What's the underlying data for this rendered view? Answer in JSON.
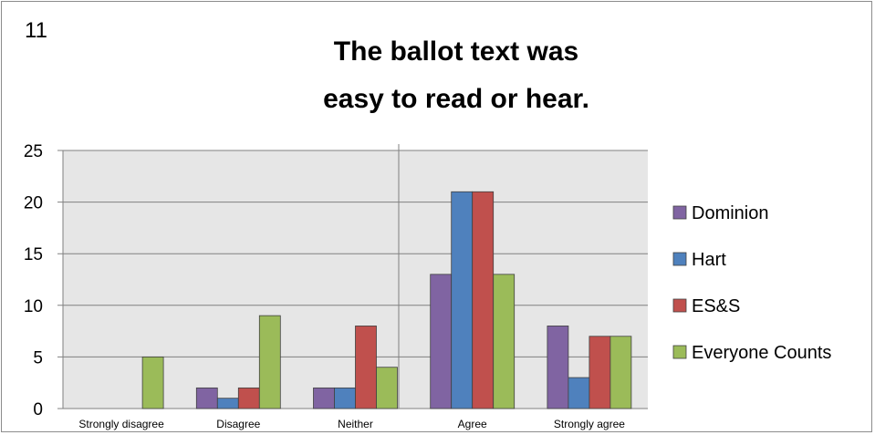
{
  "slide_number": "11",
  "title_lines": [
    "The ballot text was",
    "easy to read or hear."
  ],
  "chart_data": {
    "type": "bar",
    "title": "The ballot text was easy to read or hear.",
    "categories": [
      "Strongly disagree",
      "Disagree",
      "Neither",
      "Agree",
      "Strongly agree"
    ],
    "series": [
      {
        "name": "Dominion",
        "color": "#8064a2",
        "values": [
          0,
          2,
          2,
          13,
          8
        ]
      },
      {
        "name": "Hart",
        "color": "#4f81bd",
        "values": [
          0,
          1,
          2,
          21,
          3
        ]
      },
      {
        "name": "ES&S",
        "color": "#c0504d",
        "values": [
          0,
          2,
          8,
          21,
          7
        ]
      },
      {
        "name": "Everyone Counts",
        "color": "#9bbb59",
        "values": [
          5,
          9,
          4,
          13,
          7
        ]
      }
    ],
    "ylim": [
      0,
      25
    ],
    "yticks": [
      0,
      5,
      10,
      15,
      20,
      25
    ],
    "grid": true,
    "legend": "right",
    "xlabel": "",
    "ylabel": ""
  }
}
